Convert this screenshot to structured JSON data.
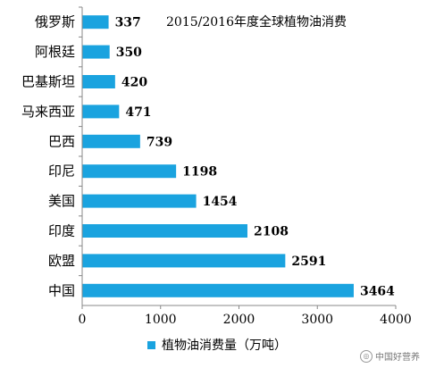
{
  "chart_data": {
    "type": "bar",
    "orientation": "horizontal",
    "title": "2015/2016年度全球植物油消费",
    "categories": [
      "俄罗斯",
      "阿根廷",
      "巴基斯坦",
      "马来西亚",
      "巴西",
      "印尼",
      "美国",
      "印度",
      "欧盟",
      "中国"
    ],
    "series": [
      {
        "name": "植物油消费量（万吨）",
        "values": [
          337,
          350,
          420,
          471,
          739,
          1198,
          1454,
          2108,
          2591,
          3464
        ],
        "color": "#1aa3df"
      }
    ],
    "x_ticks": [
      0,
      1000,
      2000,
      3000,
      4000
    ],
    "xlim": [
      0,
      4000
    ],
    "data_labels": true,
    "legend_position": "bottom",
    "grid": false
  },
  "watermark": "中国好营养"
}
